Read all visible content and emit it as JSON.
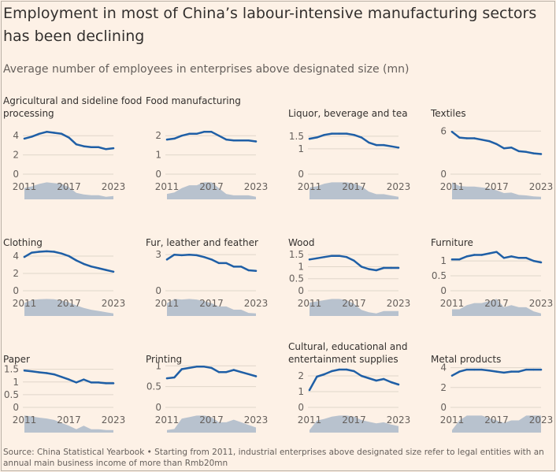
{
  "header": {
    "title": "Employment in most of China’s labour-intensive manufacturing sectors has been declining",
    "subtitle": "Average number of employees in enterprises above designated size (mn)"
  },
  "footer": {
    "source": "Source: China Statistical Yearbook • Starting from 2011, industrial enterprises above designated size refer to legal entities with an annual main business income of more than Rmb20mn"
  },
  "colors": {
    "line": "#1f5fa6",
    "area": "#b8c2ce",
    "background": "#fdf1e6"
  },
  "chart_data": [
    {
      "type": "line",
      "title": "Agricultural and sideline food processing",
      "x": [
        2011,
        2012,
        2013,
        2014,
        2015,
        2016,
        2017,
        2018,
        2019,
        2020,
        2021,
        2022,
        2023
      ],
      "y": [
        3.7,
        3.9,
        4.2,
        4.4,
        4.3,
        4.2,
        3.8,
        3.1,
        2.9,
        2.8,
        2.8,
        2.6,
        2.7
      ],
      "yticks": [
        0,
        2,
        4
      ],
      "ylabels": [
        "0",
        "2",
        "4"
      ],
      "xticks": [
        2011,
        2017,
        2023
      ],
      "ylim": [
        0,
        5
      ]
    },
    {
      "type": "line",
      "title": "Food manufacturing",
      "x": [
        2011,
        2012,
        2013,
        2014,
        2015,
        2016,
        2017,
        2018,
        2019,
        2020,
        2021,
        2022,
        2023
      ],
      "y": [
        1.8,
        1.85,
        2.0,
        2.1,
        2.1,
        2.2,
        2.2,
        2.0,
        1.8,
        1.75,
        1.75,
        1.75,
        1.7
      ],
      "yticks": [
        0,
        1,
        2
      ],
      "ylabels": [
        "0",
        "1",
        "2"
      ],
      "xticks": [
        2011,
        2017,
        2023
      ],
      "ylim": [
        0,
        2.5
      ]
    },
    {
      "type": "line",
      "title": "Liquor, beverage and tea",
      "x": [
        2011,
        2012,
        2013,
        2014,
        2015,
        2016,
        2017,
        2018,
        2019,
        2020,
        2021,
        2022,
        2023
      ],
      "y": [
        1.4,
        1.45,
        1.55,
        1.6,
        1.6,
        1.6,
        1.55,
        1.45,
        1.25,
        1.15,
        1.15,
        1.1,
        1.05
      ],
      "yticks": [
        0,
        1,
        1.5
      ],
      "ylabels": [
        "0",
        "1",
        "1.5"
      ],
      "xticks": [
        2011,
        2017,
        2023
      ],
      "ylim": [
        0,
        1.9
      ]
    },
    {
      "type": "line",
      "title": "Textiles",
      "x": [
        2011,
        2012,
        2013,
        2014,
        2015,
        2016,
        2017,
        2018,
        2019,
        2020,
        2021,
        2022,
        2023
      ],
      "y": [
        5.9,
        5.1,
        5.0,
        5.0,
        4.8,
        4.6,
        4.2,
        3.6,
        3.7,
        3.2,
        3.1,
        2.9,
        2.8
      ],
      "yticks": [
        0,
        6
      ],
      "ylabels": [
        "0",
        "6"
      ],
      "xticks": [
        2011,
        2017,
        2023
      ],
      "ylim": [
        0,
        6.7
      ]
    },
    {
      "type": "line",
      "title": "Clothing",
      "x": [
        2011,
        2012,
        2013,
        2014,
        2015,
        2016,
        2017,
        2018,
        2019,
        2020,
        2021,
        2022,
        2023
      ],
      "y": [
        3.9,
        4.4,
        4.5,
        4.55,
        4.5,
        4.3,
        4.0,
        3.5,
        3.1,
        2.8,
        2.6,
        2.4,
        2.2
      ],
      "yticks": [
        0,
        2,
        4
      ],
      "ylabels": [
        "0",
        "2",
        "4"
      ],
      "xticks": [
        2011,
        2017,
        2023
      ],
      "ylim": [
        0,
        5
      ]
    },
    {
      "type": "line",
      "title": "Fur, leather and feather",
      "x": [
        2011,
        2012,
        2013,
        2014,
        2015,
        2016,
        2017,
        2018,
        2019,
        2020,
        2021,
        2022,
        2023
      ],
      "y": [
        2.6,
        3.0,
        2.95,
        3.0,
        2.95,
        2.8,
        2.6,
        2.3,
        2.3,
        2.0,
        2.0,
        1.7,
        1.65
      ],
      "yticks": [
        0,
        3
      ],
      "ylabels": [
        "0",
        "3"
      ],
      "xticks": [
        2011,
        2017,
        2023
      ],
      "ylim": [
        0,
        3.6
      ]
    },
    {
      "type": "line",
      "title": "Wood",
      "x": [
        2011,
        2012,
        2013,
        2014,
        2015,
        2016,
        2017,
        2018,
        2019,
        2020,
        2021,
        2022,
        2023
      ],
      "y": [
        1.3,
        1.35,
        1.4,
        1.45,
        1.45,
        1.4,
        1.25,
        1.0,
        0.9,
        0.85,
        0.95,
        0.95,
        0.95
      ],
      "yticks": [
        0,
        0.5,
        1,
        1.5
      ],
      "ylabels": [
        "0",
        "0.5",
        "1",
        "1.5"
      ],
      "xticks": [
        2011,
        2017,
        2023
      ],
      "ylim": [
        0,
        1.8
      ]
    },
    {
      "type": "line",
      "title": "Furniture",
      "x": [
        2011,
        2012,
        2013,
        2014,
        2015,
        2016,
        2017,
        2018,
        2019,
        2020,
        2021,
        2022,
        2023
      ],
      "y": [
        1.05,
        1.05,
        1.15,
        1.2,
        1.2,
        1.25,
        1.3,
        1.1,
        1.15,
        1.1,
        1.1,
        1.0,
        0.95
      ],
      "yticks": [
        0,
        0.5,
        1
      ],
      "ylabels": [
        "0",
        "0.5",
        "1"
      ],
      "xticks": [
        2011,
        2017,
        2023
      ],
      "ylim": [
        0,
        1.45
      ]
    },
    {
      "type": "line",
      "title": "Paper",
      "x": [
        2011,
        2012,
        2013,
        2014,
        2015,
        2016,
        2017,
        2018,
        2019,
        2020,
        2021,
        2022,
        2023
      ],
      "y": [
        1.45,
        1.42,
        1.38,
        1.35,
        1.3,
        1.2,
        1.1,
        0.98,
        1.1,
        0.98,
        0.98,
        0.95,
        0.95
      ],
      "yticks": [
        0,
        0.5,
        1,
        1.5
      ],
      "ylabels": [
        "0",
        "0.5",
        "1",
        "1.5"
      ],
      "xticks": [
        2011,
        2017,
        2023
      ],
      "ylim": [
        0,
        1.8
      ]
    },
    {
      "type": "line",
      "title": "Printing",
      "x": [
        2011,
        2012,
        2013,
        2014,
        2015,
        2016,
        2017,
        2018,
        2019,
        2020,
        2021,
        2022,
        2023
      ],
      "y": [
        0.7,
        0.72,
        0.92,
        0.95,
        0.98,
        0.98,
        0.95,
        0.85,
        0.85,
        0.9,
        0.85,
        0.8,
        0.75
      ],
      "yticks": [
        0,
        0.5,
        1
      ],
      "ylabels": [
        "0",
        "0.5",
        "1"
      ],
      "xticks": [
        2011,
        2017,
        2023
      ],
      "ylim": [
        0,
        1.1
      ]
    },
    {
      "type": "line",
      "title": "Cultural, educational and entertainment supplies",
      "x": [
        2011,
        2012,
        2013,
        2014,
        2015,
        2016,
        2017,
        2018,
        2019,
        2020,
        2021,
        2022,
        2023
      ],
      "y": [
        1.1,
        1.95,
        2.1,
        2.3,
        2.4,
        2.4,
        2.3,
        2.0,
        1.85,
        1.7,
        1.8,
        1.6,
        1.45
      ],
      "yticks": [
        0,
        1,
        2
      ],
      "ylabels": [
        "0",
        "1",
        "2"
      ],
      "xticks": [
        2011,
        2017,
        2023
      ],
      "ylim": [
        0,
        2.9
      ]
    },
    {
      "type": "line",
      "title": "Metal products",
      "x": [
        2011,
        2012,
        2013,
        2014,
        2015,
        2016,
        2017,
        2018,
        2019,
        2020,
        2021,
        2022,
        2023
      ],
      "y": [
        3.2,
        3.6,
        3.8,
        3.8,
        3.8,
        3.7,
        3.6,
        3.5,
        3.6,
        3.6,
        3.8,
        3.8,
        3.8
      ],
      "yticks": [
        0,
        2,
        4
      ],
      "ylabels": [
        "0",
        "2",
        "4"
      ],
      "xticks": [
        2011,
        2017,
        2023
      ],
      "ylim": [
        0,
        4.6
      ]
    }
  ]
}
